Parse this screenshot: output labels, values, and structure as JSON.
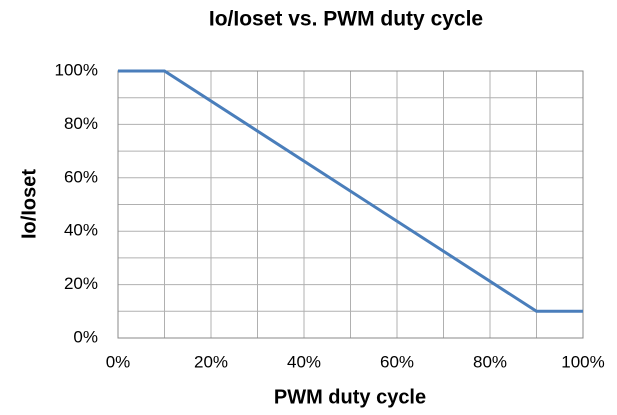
{
  "chart_data": {
    "type": "line",
    "title": "Io/Ioset vs. PWM duty cycle",
    "x_label": "PWM duty cycle",
    "y_label": "Io/Ioset",
    "x": [
      0,
      10,
      90,
      100
    ],
    "values": [
      100,
      100,
      10,
      10
    ],
    "color": "#4a7ebb",
    "xlim": [
      0,
      100
    ],
    "ylim": [
      0,
      100
    ],
    "xticks": [
      {
        "value": 0,
        "label": "0%"
      },
      {
        "value": 20,
        "label": "20%"
      },
      {
        "value": 40,
        "label": "40%"
      },
      {
        "value": 60,
        "label": "60%"
      },
      {
        "value": 80,
        "label": "80%"
      },
      {
        "value": 100,
        "label": "100%"
      }
    ],
    "yticks": [
      {
        "value": 0,
        "label": "0%"
      },
      {
        "value": 20,
        "label": "20%"
      },
      {
        "value": 40,
        "label": "40%"
      },
      {
        "value": 60,
        "label": "60%"
      },
      {
        "value": 80,
        "label": "80%"
      },
      {
        "value": 100,
        "label": "100%"
      }
    ],
    "grid": true,
    "minor_grid": true
  }
}
